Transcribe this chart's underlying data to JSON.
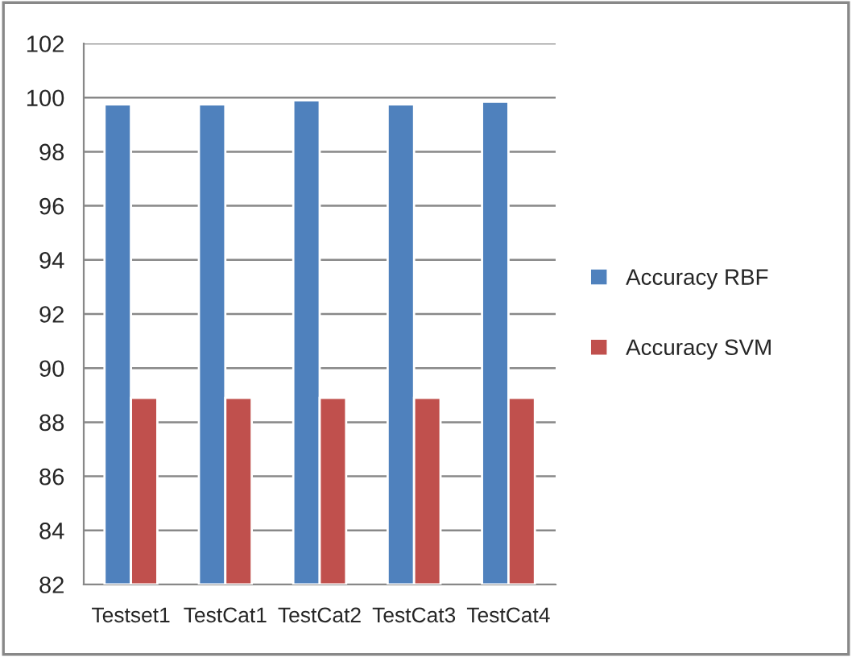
{
  "chart_data": {
    "type": "bar",
    "categories": [
      "Testset1",
      "TestCat1",
      "TestCat2",
      "TestCat3",
      "TestCat4"
    ],
    "series": [
      {
        "name": "Accuracy RBF",
        "color": "#4f81bd",
        "values": [
          99.75,
          99.75,
          99.9,
          99.75,
          99.85
        ]
      },
      {
        "name": "Accuracy SVM",
        "color": "#c0504d",
        "values": [
          88.9,
          88.9,
          88.9,
          88.9,
          88.9
        ]
      }
    ],
    "ylim": [
      82,
      102
    ],
    "yticks": [
      82,
      84,
      86,
      88,
      90,
      92,
      94,
      96,
      98,
      100,
      102
    ],
    "grid": "y",
    "legend": "right"
  }
}
